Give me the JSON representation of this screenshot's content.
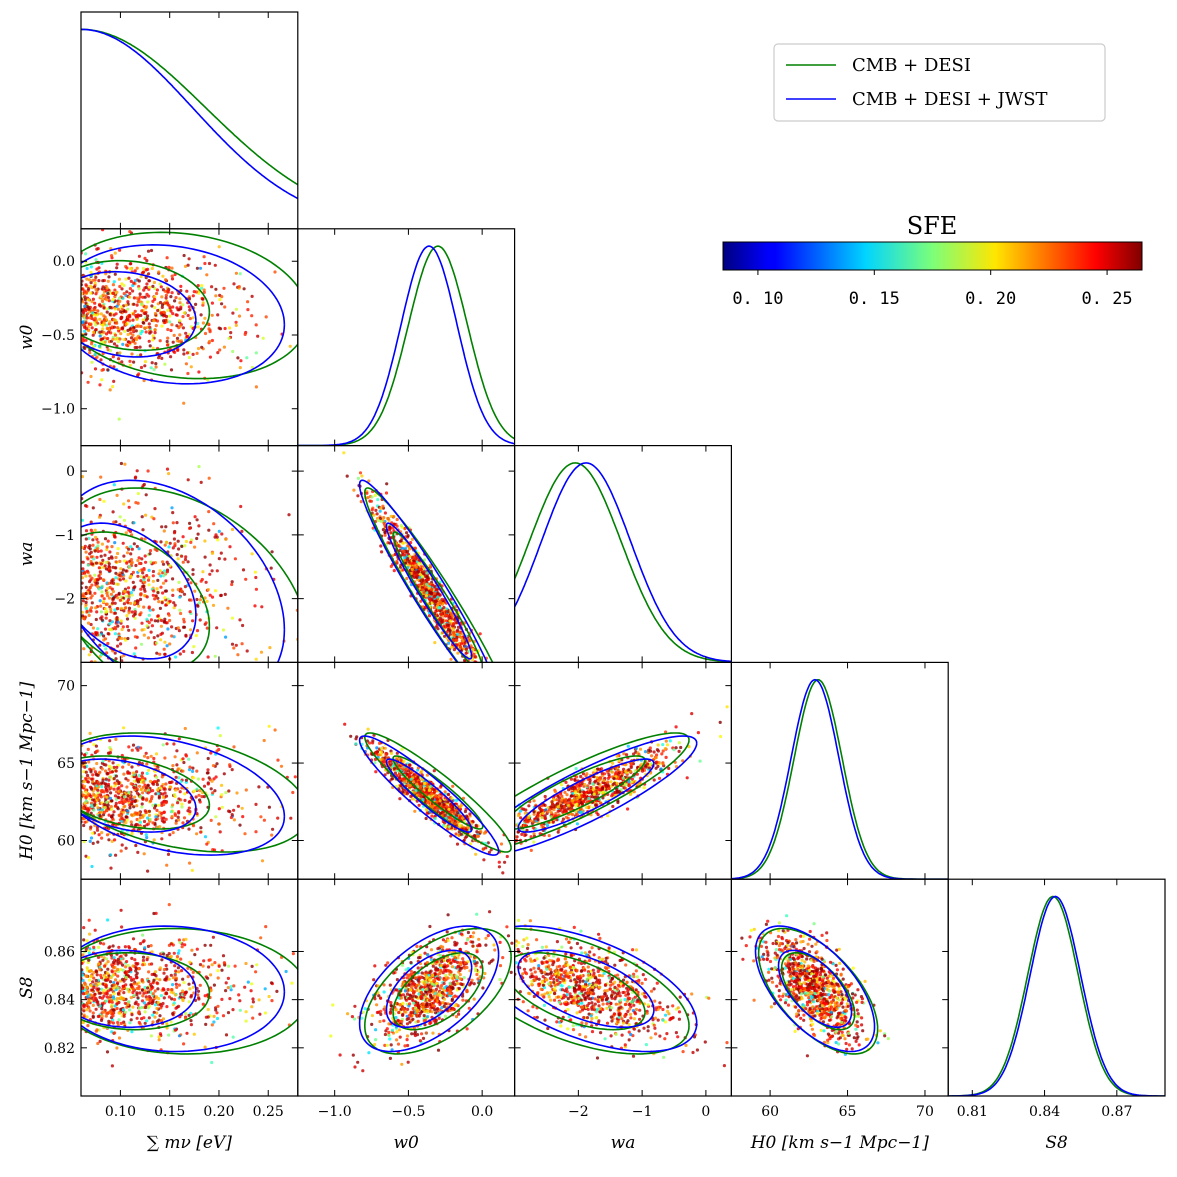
{
  "chart_data": {
    "type": "scatter",
    "title": "",
    "params": [
      {
        "id": "mnu",
        "label": "∑ mν [eV]",
        "range": [
          0.06,
          0.28
        ],
        "ticks": [
          0.1,
          0.15,
          0.2,
          0.25
        ],
        "tick_labels": [
          "0.10",
          "0.15",
          "0.20",
          "0.25"
        ]
      },
      {
        "id": "w0",
        "label": "w0",
        "range": [
          -1.25,
          0.22
        ],
        "ticks": [
          -1.0,
          -0.5,
          0.0
        ],
        "tick_labels": [
          "−1.0",
          "−0.5",
          "0.0"
        ]
      },
      {
        "id": "wa",
        "label": "wa",
        "range": [
          -3.0,
          0.4
        ],
        "ticks": [
          -2,
          -1,
          0
        ],
        "tick_labels": [
          "−2",
          "−1",
          "0"
        ]
      },
      {
        "id": "H0",
        "label": "H0 [km s−1 Mpc−1]",
        "range": [
          57.5,
          71.5
        ],
        "ticks": [
          60,
          65,
          70
        ],
        "tick_labels": [
          "60",
          "65",
          "70"
        ]
      },
      {
        "id": "S8",
        "label": "S8",
        "range": [
          0.8,
          0.89
        ],
        "ticks": [
          0.81,
          0.84,
          0.87
        ],
        "tick_labels": [
          "0.81",
          "0.84",
          "0.87"
        ],
        "y_ticks": [
          0.82,
          0.84,
          0.86
        ],
        "y_tick_labels": [
          "0.82",
          "0.84",
          "0.86"
        ]
      }
    ],
    "series": [
      {
        "name": "CMB + DESI",
        "color": "#008000",
        "marginals": {
          "mnu": {
            "mode": 0.06,
            "half_width": 0.095,
            "shape": "half-gaussian"
          },
          "w0": {
            "mean": -0.3,
            "sigma": 0.2
          },
          "wa": {
            "mean": -2.05,
            "sigma": 0.72
          },
          "H0": {
            "mean": 63.1,
            "sigma": 1.55
          },
          "S8": {
            "mean": 0.8435,
            "sigma": 0.0105
          }
        }
      },
      {
        "name": "CMB + DESI + JWST",
        "color": "#0000ff",
        "marginals": {
          "mnu": {
            "mode": 0.06,
            "half_width": 0.085,
            "shape": "half-gaussian"
          },
          "w0": {
            "mean": -0.36,
            "sigma": 0.19
          },
          "wa": {
            "mean": -1.88,
            "sigma": 0.7
          },
          "H0": {
            "mean": 62.9,
            "sigma": 1.55
          },
          "S8": {
            "mean": 0.8445,
            "sigma": 0.0105
          }
        }
      }
    ],
    "correlations": {
      "mnu-w0": -0.15,
      "mnu-wa": -0.35,
      "w0-wa": -0.96,
      "mnu-H0": -0.35,
      "w0-H0": -0.93,
      "wa-H0": 0.88,
      "mnu-S8": -0.05,
      "w0-S8": 0.55,
      "wa-S8": -0.55,
      "H0-S8": -0.6
    },
    "colorbar": {
      "title": "SFE",
      "range": [
        0.085,
        0.265
      ],
      "ticks": [
        0.1,
        0.15,
        0.2,
        0.25
      ],
      "tick_labels": [
        "0. 10",
        "0. 15",
        "0. 20",
        "0. 25"
      ],
      "colormap": "jet"
    },
    "legend": {
      "position": "top-right",
      "entries": [
        "CMB + DESI",
        "CMB + DESI + JWST"
      ]
    },
    "grid": false
  }
}
